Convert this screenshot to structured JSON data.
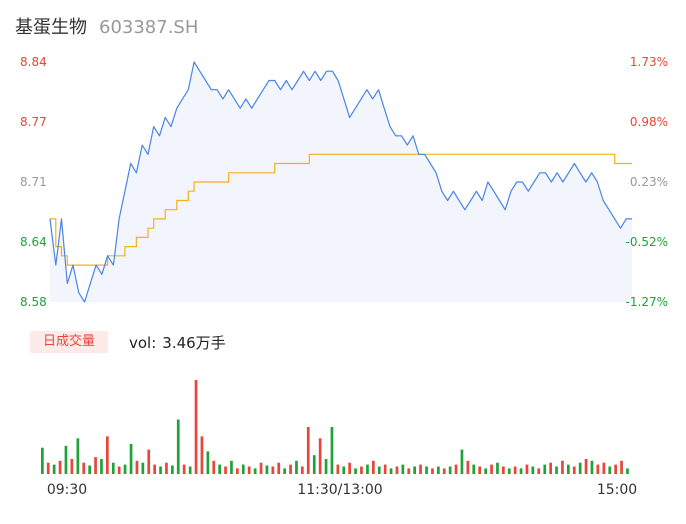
{
  "header": {
    "stock_name": "基蛋生物",
    "stock_code": "603387.SH"
  },
  "volume_panel": {
    "tag_label": "日成交量",
    "vol_label": "vol:",
    "vol_value": "3.46万手"
  },
  "colors": {
    "price_line": "#4a84e4",
    "avg_line": "#f2b21c",
    "up": "#e8463a",
    "down": "#1fa23a",
    "neutral": "#999999",
    "fill": "#f2f5fc"
  },
  "chart_data": [
    {
      "type": "line",
      "title": "",
      "y_ticks": [
        "8.84",
        "8.77",
        "8.71",
        "8.64",
        "8.58"
      ],
      "y_tick_colors": [
        "up",
        "up",
        "neutral",
        "down",
        "down"
      ],
      "y_pct_ticks": [
        "1.73%",
        "0.98%",
        "0.23%",
        "-0.52%",
        "-1.27%"
      ],
      "ylim": [
        8.58,
        8.84
      ],
      "prev_close": 8.69,
      "x_ticks": [
        "09:30",
        "11:30/13:00",
        "15:00"
      ],
      "series": [
        {
          "role": "price",
          "values": [
            8.67,
            8.62,
            8.67,
            8.6,
            8.62,
            8.59,
            8.58,
            8.6,
            8.62,
            8.61,
            8.63,
            8.62,
            8.67,
            8.7,
            8.73,
            8.72,
            8.75,
            8.74,
            8.77,
            8.76,
            8.78,
            8.77,
            8.79,
            8.8,
            8.81,
            8.84,
            8.83,
            8.82,
            8.81,
            8.81,
            8.8,
            8.81,
            8.8,
            8.79,
            8.8,
            8.79,
            8.8,
            8.81,
            8.82,
            8.82,
            8.81,
            8.82,
            8.81,
            8.82,
            8.83,
            8.82,
            8.83,
            8.82,
            8.83,
            8.83,
            8.82,
            8.8,
            8.78,
            8.79,
            8.8,
            8.81,
            8.8,
            8.81,
            8.79,
            8.77,
            8.76,
            8.76,
            8.75,
            8.76,
            8.74,
            8.74,
            8.73,
            8.72,
            8.7,
            8.69,
            8.7,
            8.69,
            8.68,
            8.69,
            8.7,
            8.69,
            8.71,
            8.7,
            8.69,
            8.68,
            8.7,
            8.71,
            8.71,
            8.7,
            8.71,
            8.72,
            8.72,
            8.71,
            8.72,
            8.71,
            8.72,
            8.73,
            8.72,
            8.71,
            8.72,
            8.71,
            8.69,
            8.68,
            8.67,
            8.66,
            8.67,
            8.67
          ]
        },
        {
          "role": "average",
          "values": [
            8.67,
            8.64,
            8.63,
            8.62,
            8.62,
            8.62,
            8.62,
            8.62,
            8.62,
            8.62,
            8.63,
            8.63,
            8.63,
            8.64,
            8.64,
            8.65,
            8.65,
            8.66,
            8.67,
            8.67,
            8.68,
            8.68,
            8.69,
            8.69,
            8.7,
            8.71,
            8.71,
            8.71,
            8.71,
            8.71,
            8.71,
            8.72,
            8.72,
            8.72,
            8.72,
            8.72,
            8.72,
            8.72,
            8.72,
            8.73,
            8.73,
            8.73,
            8.73,
            8.73,
            8.73,
            8.74,
            8.74,
            8.74,
            8.74,
            8.74,
            8.74,
            8.74,
            8.74,
            8.74,
            8.74,
            8.74,
            8.74,
            8.74,
            8.74,
            8.74,
            8.74,
            8.74,
            8.74,
            8.74,
            8.74,
            8.74,
            8.74,
            8.74,
            8.74,
            8.74,
            8.74,
            8.74,
            8.74,
            8.74,
            8.74,
            8.74,
            8.74,
            8.74,
            8.74,
            8.74,
            8.74,
            8.74,
            8.74,
            8.74,
            8.74,
            8.74,
            8.74,
            8.74,
            8.74,
            8.74,
            8.74,
            8.74,
            8.74,
            8.74,
            8.74,
            8.74,
            8.74,
            8.74,
            8.73,
            8.73,
            8.73,
            8.73
          ]
        }
      ]
    },
    {
      "type": "bar",
      "title": "",
      "ylim": [
        0,
        100
      ],
      "bars": [
        {
          "v": 28,
          "d": "down"
        },
        {
          "v": 12,
          "d": "up"
        },
        {
          "v": 10,
          "d": "down"
        },
        {
          "v": 14,
          "d": "up"
        },
        {
          "v": 30,
          "d": "down"
        },
        {
          "v": 16,
          "d": "up"
        },
        {
          "v": 38,
          "d": "down"
        },
        {
          "v": 12,
          "d": "up"
        },
        {
          "v": 9,
          "d": "down"
        },
        {
          "v": 18,
          "d": "up"
        },
        {
          "v": 16,
          "d": "down"
        },
        {
          "v": 40,
          "d": "up"
        },
        {
          "v": 12,
          "d": "down"
        },
        {
          "v": 8,
          "d": "up"
        },
        {
          "v": 10,
          "d": "down"
        },
        {
          "v": 32,
          "d": "down"
        },
        {
          "v": 14,
          "d": "up"
        },
        {
          "v": 12,
          "d": "down"
        },
        {
          "v": 26,
          "d": "up"
        },
        {
          "v": 10,
          "d": "up"
        },
        {
          "v": 8,
          "d": "down"
        },
        {
          "v": 12,
          "d": "up"
        },
        {
          "v": 9,
          "d": "down"
        },
        {
          "v": 58,
          "d": "down"
        },
        {
          "v": 10,
          "d": "up"
        },
        {
          "v": 8,
          "d": "down"
        },
        {
          "v": 100,
          "d": "up"
        },
        {
          "v": 40,
          "d": "up"
        },
        {
          "v": 24,
          "d": "down"
        },
        {
          "v": 14,
          "d": "up"
        },
        {
          "v": 10,
          "d": "down"
        },
        {
          "v": 8,
          "d": "up"
        },
        {
          "v": 14,
          "d": "down"
        },
        {
          "v": 6,
          "d": "up"
        },
        {
          "v": 10,
          "d": "down"
        },
        {
          "v": 8,
          "d": "up"
        },
        {
          "v": 6,
          "d": "down"
        },
        {
          "v": 12,
          "d": "up"
        },
        {
          "v": 9,
          "d": "down"
        },
        {
          "v": 8,
          "d": "up"
        },
        {
          "v": 12,
          "d": "up"
        },
        {
          "v": 6,
          "d": "down"
        },
        {
          "v": 10,
          "d": "up"
        },
        {
          "v": 14,
          "d": "down"
        },
        {
          "v": 8,
          "d": "up"
        },
        {
          "v": 50,
          "d": "up"
        },
        {
          "v": 20,
          "d": "down"
        },
        {
          "v": 38,
          "d": "up"
        },
        {
          "v": 16,
          "d": "down"
        },
        {
          "v": 50,
          "d": "down"
        },
        {
          "v": 10,
          "d": "up"
        },
        {
          "v": 8,
          "d": "down"
        },
        {
          "v": 12,
          "d": "up"
        },
        {
          "v": 6,
          "d": "down"
        },
        {
          "v": 8,
          "d": "up"
        },
        {
          "v": 10,
          "d": "down"
        },
        {
          "v": 14,
          "d": "up"
        },
        {
          "v": 8,
          "d": "down"
        },
        {
          "v": 10,
          "d": "up"
        },
        {
          "v": 6,
          "d": "down"
        },
        {
          "v": 8,
          "d": "up"
        },
        {
          "v": 10,
          "d": "down"
        },
        {
          "v": 6,
          "d": "up"
        },
        {
          "v": 8,
          "d": "down"
        },
        {
          "v": 10,
          "d": "up"
        },
        {
          "v": 8,
          "d": "down"
        },
        {
          "v": 6,
          "d": "up"
        },
        {
          "v": 8,
          "d": "down"
        },
        {
          "v": 6,
          "d": "up"
        },
        {
          "v": 8,
          "d": "down"
        },
        {
          "v": 10,
          "d": "up"
        },
        {
          "v": 26,
          "d": "down"
        },
        {
          "v": 14,
          "d": "up"
        },
        {
          "v": 10,
          "d": "down"
        },
        {
          "v": 8,
          "d": "up"
        },
        {
          "v": 6,
          "d": "down"
        },
        {
          "v": 10,
          "d": "up"
        },
        {
          "v": 12,
          "d": "down"
        },
        {
          "v": 8,
          "d": "up"
        },
        {
          "v": 6,
          "d": "down"
        },
        {
          "v": 8,
          "d": "up"
        },
        {
          "v": 6,
          "d": "down"
        },
        {
          "v": 10,
          "d": "up"
        },
        {
          "v": 8,
          "d": "down"
        },
        {
          "v": 6,
          "d": "up"
        },
        {
          "v": 10,
          "d": "down"
        },
        {
          "v": 12,
          "d": "up"
        },
        {
          "v": 8,
          "d": "down"
        },
        {
          "v": 14,
          "d": "up"
        },
        {
          "v": 10,
          "d": "down"
        },
        {
          "v": 8,
          "d": "up"
        },
        {
          "v": 12,
          "d": "down"
        },
        {
          "v": 16,
          "d": "up"
        },
        {
          "v": 14,
          "d": "down"
        },
        {
          "v": 10,
          "d": "up"
        },
        {
          "v": 12,
          "d": "up"
        },
        {
          "v": 8,
          "d": "down"
        },
        {
          "v": 10,
          "d": "up"
        },
        {
          "v": 14,
          "d": "up"
        },
        {
          "v": 6,
          "d": "down"
        }
      ]
    }
  ]
}
